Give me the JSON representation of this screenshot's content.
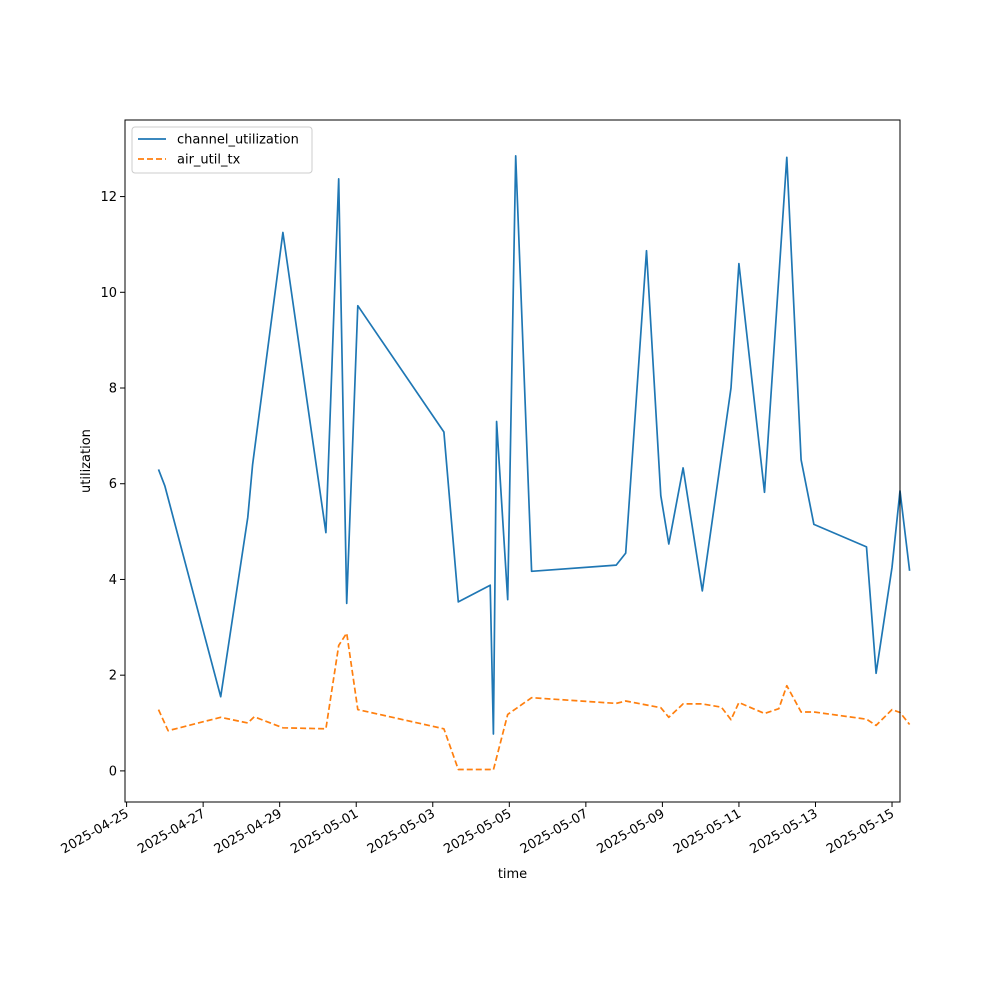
{
  "chart_data": {
    "type": "line",
    "title": "",
    "xlabel": "time",
    "ylabel": "utilization",
    "xlim": [
      "2025-04-24T23:00",
      "2025-05-15T05:00"
    ],
    "ylim": [
      -0.65,
      13.6
    ],
    "x_ticks": [
      "2025-04-25",
      "2025-04-27",
      "2025-04-29",
      "2025-05-01",
      "2025-05-03",
      "2025-05-05",
      "2025-05-07",
      "2025-05-09",
      "2025-05-11",
      "2025-05-13",
      "2025-05-15"
    ],
    "y_ticks": [
      0,
      2,
      4,
      6,
      8,
      10,
      12
    ],
    "grid": false,
    "legend_position": "upper-left",
    "series": [
      {
        "name": "channel_utilization",
        "color": "#1f77b4",
        "dash": "solid",
        "points": [
          [
            "2025-04-25T20:00",
            6.3
          ],
          [
            "2025-04-26T00:00",
            5.95
          ],
          [
            "2025-04-27T11:00",
            1.55
          ],
          [
            "2025-04-28T04:00",
            5.3
          ],
          [
            "2025-04-28T07:00",
            6.4
          ],
          [
            "2025-04-29T02:00",
            11.25
          ],
          [
            "2025-04-30T05:00",
            4.98
          ],
          [
            "2025-04-30T13:00",
            12.37
          ],
          [
            "2025-04-30T18:00",
            3.5
          ],
          [
            "2025-05-01T01:00",
            9.72
          ],
          [
            "2025-05-03T07:00",
            7.08
          ],
          [
            "2025-05-03T16:00",
            3.53
          ],
          [
            "2025-05-04T12:00",
            3.88
          ],
          [
            "2025-05-04T14:00",
            0.77
          ],
          [
            "2025-05-04T16:00",
            7.3
          ],
          [
            "2025-05-04T23:00",
            3.58
          ],
          [
            "2025-05-05T04:00",
            12.85
          ],
          [
            "2025-05-05T14:00",
            4.17
          ],
          [
            "2025-05-07T19:00",
            4.3
          ],
          [
            "2025-05-08T01:00",
            4.55
          ],
          [
            "2025-05-08T14:00",
            10.87
          ],
          [
            "2025-05-08T23:00",
            5.75
          ],
          [
            "2025-05-09T04:00",
            4.74
          ],
          [
            "2025-05-09T13:00",
            6.33
          ],
          [
            "2025-05-10T01:00",
            3.76
          ],
          [
            "2025-05-10T19:00",
            8.0
          ],
          [
            "2025-05-11T00:00",
            10.6
          ],
          [
            "2025-05-11T16:00",
            5.82
          ],
          [
            "2025-05-12T06:00",
            12.82
          ],
          [
            "2025-05-12T15:00",
            6.5
          ],
          [
            "2025-05-12T23:00",
            5.15
          ],
          [
            "2025-05-14T08:00",
            4.68
          ],
          [
            "2025-05-14T14:00",
            2.04
          ],
          [
            "2025-05-15T00:00",
            4.25
          ],
          [
            "2025-05-15T05:00",
            5.85
          ],
          [
            "2025-05-15T11:00",
            4.18
          ]
        ]
      },
      {
        "name": "air_util_tx",
        "color": "#ff7f0e",
        "dash": "dashed",
        "points": [
          [
            "2025-04-25T20:00",
            1.28
          ],
          [
            "2025-04-26T02:00",
            0.84
          ],
          [
            "2025-04-27T11:00",
            1.12
          ],
          [
            "2025-04-28T04:00",
            1.0
          ],
          [
            "2025-04-28T08:00",
            1.13
          ],
          [
            "2025-04-29T02:00",
            0.9
          ],
          [
            "2025-04-30T05:00",
            0.88
          ],
          [
            "2025-04-30T13:00",
            2.62
          ],
          [
            "2025-04-30T18:00",
            2.88
          ],
          [
            "2025-05-01T01:00",
            1.28
          ],
          [
            "2025-05-03T07:00",
            0.88
          ],
          [
            "2025-05-03T16:00",
            0.03
          ],
          [
            "2025-05-04T12:00",
            0.03
          ],
          [
            "2025-05-04T14:00",
            0.02
          ],
          [
            "2025-05-04T23:00",
            1.18
          ],
          [
            "2025-05-05T14:00",
            1.53
          ],
          [
            "2025-05-07T19:00",
            1.41
          ],
          [
            "2025-05-08T01:00",
            1.46
          ],
          [
            "2025-05-08T23:00",
            1.32
          ],
          [
            "2025-05-09T04:00",
            1.12
          ],
          [
            "2025-05-09T13:00",
            1.4
          ],
          [
            "2025-05-10T01:00",
            1.4
          ],
          [
            "2025-05-10T13:00",
            1.33
          ],
          [
            "2025-05-10T19:00",
            1.07
          ],
          [
            "2025-05-11T00:00",
            1.43
          ],
          [
            "2025-05-11T16:00",
            1.2
          ],
          [
            "2025-05-12T01:00",
            1.3
          ],
          [
            "2025-05-12T06:00",
            1.78
          ],
          [
            "2025-05-12T15:00",
            1.23
          ],
          [
            "2025-05-12T23:00",
            1.23
          ],
          [
            "2025-05-14T08:00",
            1.08
          ],
          [
            "2025-05-14T14:00",
            0.95
          ],
          [
            "2025-05-15T00:00",
            1.28
          ],
          [
            "2025-05-15T05:00",
            1.22
          ],
          [
            "2025-05-15T11:00",
            0.97
          ]
        ]
      }
    ]
  }
}
